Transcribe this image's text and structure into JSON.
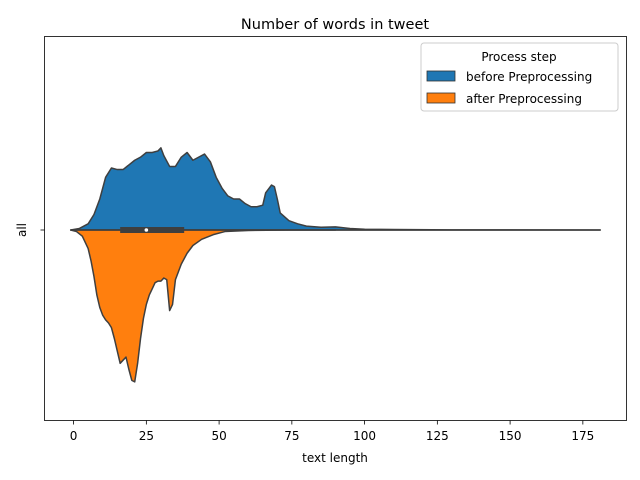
{
  "chart_data": {
    "type": "violin",
    "title": "Number of words in tweet",
    "xlabel": "text length",
    "ylabel": "",
    "category_label": "all",
    "xlim": [
      -10,
      190
    ],
    "xticks": [
      0,
      25,
      50,
      75,
      100,
      125,
      150,
      175
    ],
    "legend": {
      "title": "Process step",
      "placement": "top-right",
      "entries": [
        "before Preprocessing",
        "after Preprocessing"
      ]
    },
    "series": [
      {
        "name": "before Preprocessing",
        "color": "#1f77b4",
        "side": "upper",
        "density": [
          [
            -1,
            0
          ],
          [
            2,
            0.01
          ],
          [
            5,
            0.04
          ],
          [
            7,
            0.1
          ],
          [
            9,
            0.2
          ],
          [
            11,
            0.34
          ],
          [
            13,
            0.4
          ],
          [
            15,
            0.39
          ],
          [
            17,
            0.39
          ],
          [
            19,
            0.42
          ],
          [
            21,
            0.45
          ],
          [
            23,
            0.47
          ],
          [
            25,
            0.5
          ],
          [
            27,
            0.5
          ],
          [
            29,
            0.51
          ],
          [
            30,
            0.53
          ],
          [
            31,
            0.48
          ],
          [
            33,
            0.41
          ],
          [
            35,
            0.41
          ],
          [
            37,
            0.47
          ],
          [
            39,
            0.5
          ],
          [
            41,
            0.45
          ],
          [
            43,
            0.47
          ],
          [
            45,
            0.49
          ],
          [
            47,
            0.44
          ],
          [
            49,
            0.34
          ],
          [
            51,
            0.27
          ],
          [
            53,
            0.22
          ],
          [
            55,
            0.2
          ],
          [
            57,
            0.2
          ],
          [
            59,
            0.17
          ],
          [
            61,
            0.15
          ],
          [
            63,
            0.15
          ],
          [
            65,
            0.16
          ],
          [
            66,
            0.24
          ],
          [
            68,
            0.29
          ],
          [
            69,
            0.28
          ],
          [
            70,
            0.2
          ],
          [
            71,
            0.11
          ],
          [
            74,
            0.06
          ],
          [
            77,
            0.04
          ],
          [
            80,
            0.025
          ],
          [
            85,
            0.018
          ],
          [
            90,
            0.02
          ],
          [
            95,
            0.01
          ],
          [
            100,
            0.005
          ],
          [
            110,
            0.003
          ],
          [
            130,
            0.001
          ],
          [
            150,
            0.001
          ],
          [
            181,
            0
          ]
        ]
      },
      {
        "name": "after Preprocessing",
        "color": "#ff7f0e",
        "side": "lower",
        "density": [
          [
            -1,
            0
          ],
          [
            1,
            0.01
          ],
          [
            3,
            0.04
          ],
          [
            5,
            0.12
          ],
          [
            6,
            0.2
          ],
          [
            7,
            0.3
          ],
          [
            8,
            0.42
          ],
          [
            9,
            0.5
          ],
          [
            10,
            0.55
          ],
          [
            11,
            0.58
          ],
          [
            12,
            0.6
          ],
          [
            13,
            0.63
          ],
          [
            14,
            0.7
          ],
          [
            15,
            0.78
          ],
          [
            16,
            0.86
          ],
          [
            17,
            0.84
          ],
          [
            18,
            0.82
          ],
          [
            19,
            0.9
          ],
          [
            20,
            0.97
          ],
          [
            21,
            0.98
          ],
          [
            22,
            0.86
          ],
          [
            23,
            0.7
          ],
          [
            24,
            0.57
          ],
          [
            25,
            0.48
          ],
          [
            26,
            0.42
          ],
          [
            27,
            0.38
          ],
          [
            28,
            0.34
          ],
          [
            29,
            0.33
          ],
          [
            30,
            0.33
          ],
          [
            31,
            0.31
          ],
          [
            32,
            0.32
          ],
          [
            33,
            0.52
          ],
          [
            34,
            0.48
          ],
          [
            35,
            0.32
          ],
          [
            36,
            0.27
          ],
          [
            37,
            0.22
          ],
          [
            39,
            0.15
          ],
          [
            41,
            0.1
          ],
          [
            44,
            0.06
          ],
          [
            48,
            0.03
          ],
          [
            52,
            0.01
          ],
          [
            60,
            0.003
          ],
          [
            75,
            0
          ],
          [
            90,
            0
          ]
        ]
      }
    ],
    "box": {
      "q1": 16,
      "median": 25,
      "q3": 38,
      "whisker_low": -1,
      "whisker_high": 181
    }
  }
}
